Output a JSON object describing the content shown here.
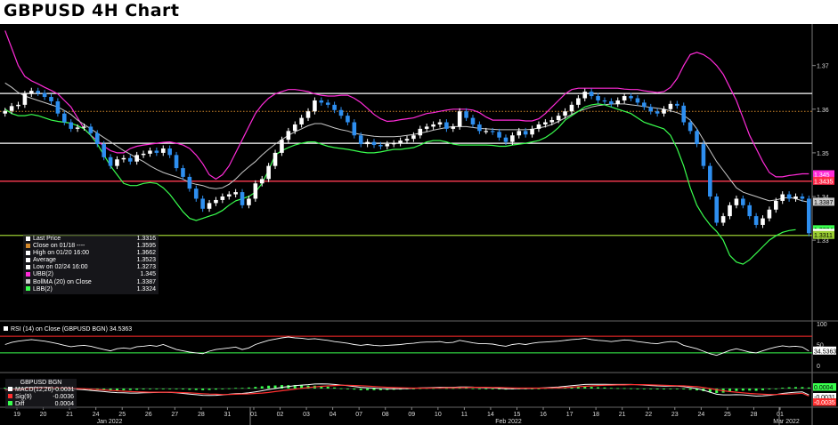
{
  "title": "GBPUSD 4H Chart",
  "chart_data": [
    {
      "type": "line",
      "panel": "price",
      "series_types": "candlestick + bollinger bands",
      "y_ticks": [
        1.33,
        1.34,
        1.35,
        1.36,
        1.37
      ],
      "y_tick_labels": [
        "1.33",
        "1.34",
        "1.35",
        "1.36",
        "1.37"
      ],
      "ylim": [
        1.3115,
        1.3795
      ],
      "x_tick_labels": [
        "19",
        "20",
        "21",
        "24",
        "25",
        "26",
        "27",
        "28",
        "31",
        "01",
        "02",
        "03",
        "04",
        "07",
        "08",
        "09",
        "10",
        "11",
        "14",
        "15",
        "16",
        "17",
        "18",
        "21",
        "22",
        "23",
        "24",
        "25",
        "28",
        "01"
      ],
      "x_month_labels": [
        "Jan 2022",
        "Feb 2022",
        "Mar 2022"
      ],
      "close": [
        1.3596,
        1.3607,
        1.361,
        1.3635,
        1.3642,
        1.3637,
        1.3628,
        1.3618,
        1.359,
        1.357,
        1.3555,
        1.3558,
        1.356,
        1.3545,
        1.352,
        1.349,
        1.347,
        1.3485,
        1.3488,
        1.348,
        1.3495,
        1.3498,
        1.3505,
        1.35,
        1.351,
        1.3495,
        1.3465,
        1.3445,
        1.3418,
        1.3395,
        1.3372,
        1.3385,
        1.3392,
        1.34,
        1.3405,
        1.341,
        1.338,
        1.3395,
        1.343,
        1.344,
        1.347,
        1.35,
        1.353,
        1.355,
        1.3565,
        1.358,
        1.3595,
        1.362,
        1.3615,
        1.361,
        1.3598,
        1.3585,
        1.357,
        1.354,
        1.352,
        1.3525,
        1.3518,
        1.3515,
        1.352,
        1.3522,
        1.3528,
        1.3532,
        1.354,
        1.3555,
        1.356,
        1.3565,
        1.357,
        1.3555,
        1.356,
        1.3595,
        1.358,
        1.3565,
        1.355,
        1.355,
        1.3548,
        1.3535,
        1.3525,
        1.354,
        1.355,
        1.3542,
        1.3555,
        1.3565,
        1.357,
        1.3575,
        1.3585,
        1.3595,
        1.361,
        1.3625,
        1.364,
        1.363,
        1.362,
        1.3618,
        1.3612,
        1.362,
        1.363,
        1.3625,
        1.3615,
        1.3605,
        1.3595,
        1.359,
        1.36,
        1.3612,
        1.3608,
        1.357,
        1.355,
        1.352,
        1.347,
        1.34,
        1.334,
        1.3355,
        1.338,
        1.3395,
        1.338,
        1.3355,
        1.3335,
        1.335,
        1.337,
        1.339,
        1.3405,
        1.3395,
        1.34,
        1.3395,
        1.3316
      ],
      "bollinger_upper": [
        1.378,
        1.374,
        1.37,
        1.3675,
        1.3665,
        1.3658,
        1.365,
        1.3643,
        1.3635,
        1.362,
        1.3605,
        1.358,
        1.3555,
        1.354,
        1.3528,
        1.3515,
        1.3505,
        1.35,
        1.35,
        1.351,
        1.3515,
        1.3518,
        1.352,
        1.3522,
        1.3524,
        1.3525,
        1.3522,
        1.3518,
        1.351,
        1.3495,
        1.3475,
        1.345,
        1.344,
        1.345,
        1.347,
        1.35,
        1.353,
        1.356,
        1.359,
        1.361,
        1.3625,
        1.3635,
        1.364,
        1.3645,
        1.3645,
        1.3643,
        1.364,
        1.3635,
        1.3632,
        1.363,
        1.363,
        1.3632,
        1.3632,
        1.3625,
        1.3615,
        1.3602,
        1.3588,
        1.3578,
        1.3572,
        1.3573,
        1.3576,
        1.3578,
        1.358,
        1.3585,
        1.359,
        1.3592,
        1.3595,
        1.3598,
        1.36,
        1.36,
        1.36,
        1.3598,
        1.3592,
        1.3582,
        1.3575,
        1.3575,
        1.3575,
        1.3575,
        1.3575,
        1.3573,
        1.3573,
        1.3578,
        1.359,
        1.3605,
        1.362,
        1.3635,
        1.3645,
        1.3648,
        1.3648,
        1.3648,
        1.3648,
        1.3648,
        1.3648,
        1.3648,
        1.3646,
        1.3645,
        1.3645,
        1.3642,
        1.364,
        1.3638,
        1.364,
        1.365,
        1.367,
        1.37,
        1.3725,
        1.373,
        1.3725,
        1.3715,
        1.37,
        1.368,
        1.365,
        1.362,
        1.358,
        1.354,
        1.351,
        1.348,
        1.3455,
        1.3445,
        1.3445,
        1.3448,
        1.345,
        1.3452,
        1.3452
      ],
      "bollinger_ma": [
        1.366,
        1.365,
        1.3638,
        1.363,
        1.3625,
        1.362,
        1.3615,
        1.361,
        1.3605,
        1.3597,
        1.3588,
        1.3575,
        1.3565,
        1.3555,
        1.3545,
        1.3535,
        1.3525,
        1.3515,
        1.3505,
        1.3497,
        1.3488,
        1.348,
        1.347,
        1.3462,
        1.3455,
        1.345,
        1.3445,
        1.344,
        1.3432,
        1.3428,
        1.3425,
        1.342,
        1.3418,
        1.342,
        1.3428,
        1.344,
        1.3455,
        1.3468,
        1.348,
        1.3495,
        1.3508,
        1.352,
        1.353,
        1.354,
        1.3548,
        1.3555,
        1.3562,
        1.3567,
        1.3567,
        1.3562,
        1.3557,
        1.3553,
        1.355,
        1.3545,
        1.3542,
        1.354,
        1.3538,
        1.3537,
        1.3537,
        1.3537,
        1.3538,
        1.354,
        1.3542,
        1.3545,
        1.3548,
        1.3552,
        1.3555,
        1.3558,
        1.356,
        1.356,
        1.356,
        1.3558,
        1.3556,
        1.3555,
        1.3554,
        1.3553,
        1.3553,
        1.3553,
        1.3553,
        1.3553,
        1.3554,
        1.3557,
        1.356,
        1.3565,
        1.3572,
        1.358,
        1.3588,
        1.3595,
        1.36,
        1.3605,
        1.3608,
        1.361,
        1.3612,
        1.3612,
        1.3612,
        1.361,
        1.3608,
        1.3606,
        1.3604,
        1.3602,
        1.36,
        1.3596,
        1.3592,
        1.3586,
        1.3575,
        1.3555,
        1.353,
        1.3505,
        1.348,
        1.346,
        1.344,
        1.342,
        1.341,
        1.3405,
        1.34,
        1.3395,
        1.339,
        1.3392,
        1.3396,
        1.3398,
        1.3395,
        1.339,
        1.3387
      ],
      "bollinger_lower": [
        1.36,
        1.359,
        1.3585,
        1.3585,
        1.3588,
        1.3585,
        1.358,
        1.3575,
        1.3572,
        1.357,
        1.3568,
        1.3562,
        1.3555,
        1.354,
        1.352,
        1.3495,
        1.347,
        1.345,
        1.343,
        1.3425,
        1.3425,
        1.343,
        1.3432,
        1.343,
        1.342,
        1.3405,
        1.3385,
        1.3365,
        1.335,
        1.3345,
        1.335,
        1.3355,
        1.336,
        1.3368,
        1.338,
        1.339,
        1.3395,
        1.34,
        1.341,
        1.343,
        1.346,
        1.3495,
        1.3505,
        1.3512,
        1.3518,
        1.3522,
        1.3525,
        1.3525,
        1.352,
        1.3515,
        1.3512,
        1.351,
        1.3508,
        1.3505,
        1.3502,
        1.35,
        1.35,
        1.3502,
        1.3505,
        1.3508,
        1.3508,
        1.351,
        1.3512,
        1.3518,
        1.3525,
        1.3528,
        1.3528,
        1.3525,
        1.352,
        1.3518,
        1.3518,
        1.3518,
        1.3518,
        1.3518,
        1.3517,
        1.3515,
        1.3515,
        1.3518,
        1.352,
        1.3522,
        1.3525,
        1.3528,
        1.3535,
        1.3545,
        1.3558,
        1.3575,
        1.3585,
        1.3595,
        1.3605,
        1.361,
        1.3612,
        1.361,
        1.3605,
        1.36,
        1.3595,
        1.359,
        1.358,
        1.357,
        1.3565,
        1.356,
        1.3555,
        1.354,
        1.351,
        1.347,
        1.342,
        1.338,
        1.3355,
        1.3335,
        1.332,
        1.33,
        1.3265,
        1.325,
        1.3245,
        1.3255,
        1.327,
        1.3285,
        1.33,
        1.331,
        1.3318,
        1.3322,
        1.3324
      ],
      "horizontal_lines": [
        {
          "value": 1.3636,
          "color": "#ffffff",
          "label": "1.3636"
        },
        {
          "value": 1.3522,
          "color": "#ffffff",
          "label": "1.3522"
        },
        {
          "value": 1.3435,
          "color": "#ff3b52",
          "label": "1.3435"
        },
        {
          "value": 1.3311,
          "color": "#9acd32",
          "label": "1.3311"
        },
        {
          "value": 1.3595,
          "color": "#d4882a",
          "dotted": true
        }
      ],
      "right_labels": [
        {
          "value": 1.345,
          "text": "1.345",
          "bg": "#ff2bd8",
          "fg": "#ffffff"
        },
        {
          "value": 1.3435,
          "text": "1.3435",
          "bg": "#ff2a4a",
          "fg": "#ffffff"
        },
        {
          "value": 1.3387,
          "text": "1.3387",
          "bg": "#c9c9c9",
          "fg": "#000000"
        },
        {
          "value": 1.3324,
          "text": "1.3324",
          "bg": "#39ff4e",
          "fg": "#000000"
        },
        {
          "value": 1.3316,
          "text": "1.3316",
          "bg": "#ffffff",
          "fg": "#000000"
        },
        {
          "value": 1.3311,
          "text": "1.3311",
          "bg": "#9acd32",
          "fg": "#000000"
        }
      ]
    },
    {
      "type": "line",
      "panel": "rsi",
      "title": "RSI (14)  on Close (GBPUSD BGN) 34.5363",
      "y_ticks": [
        100,
        50,
        0
      ],
      "y_tick_labels": [
        "100",
        "50",
        "0"
      ],
      "ylim": [
        0,
        100
      ],
      "levels": [
        70,
        30
      ],
      "last_value_label": "34.5363",
      "values": [
        50,
        55,
        58,
        60,
        62,
        60,
        58,
        55,
        52,
        48,
        45,
        47,
        48,
        46,
        42,
        38,
        35,
        40,
        42,
        40,
        45,
        46,
        48,
        46,
        50,
        44,
        38,
        35,
        32,
        30,
        28,
        34,
        38,
        40,
        42,
        44,
        38,
        42,
        50,
        55,
        60,
        63,
        66,
        68,
        66,
        65,
        63,
        64,
        62,
        60,
        57,
        55,
        53,
        50,
        48,
        50,
        48,
        47,
        48,
        49,
        50,
        52,
        53,
        55,
        56,
        56,
        57,
        54,
        55,
        60,
        57,
        54,
        52,
        52,
        51,
        48,
        46,
        50,
        52,
        50,
        53,
        55,
        56,
        57,
        58,
        60,
        62,
        63,
        65,
        62,
        60,
        59,
        57,
        59,
        61,
        60,
        57,
        55,
        53,
        52,
        55,
        57,
        56,
        48,
        44,
        40,
        34,
        28,
        24,
        30,
        36,
        40,
        36,
        32,
        30,
        35,
        40,
        44,
        47,
        45,
        46,
        44,
        34.5363
      ]
    },
    {
      "type": "bar",
      "panel": "macd",
      "y_tick_labels": [
        "0.0004",
        "-0.0031",
        "-0.0035"
      ],
      "macd": [
        -0.0004,
        -0.0001,
        0.0002,
        0.0004,
        0.0006,
        0.0007,
        0.0007,
        0.0006,
        0.0004,
        0.0001,
        -0.0002,
        -0.0004,
        -0.0006,
        -0.0009,
        -0.0012,
        -0.0015,
        -0.0018,
        -0.002,
        -0.0021,
        -0.0022,
        -0.0022,
        -0.0021,
        -0.002,
        -0.0019,
        -0.0018,
        -0.0019,
        -0.0021,
        -0.0024,
        -0.0027,
        -0.003,
        -0.0033,
        -0.0034,
        -0.0033,
        -0.0031,
        -0.0028,
        -0.0025,
        -0.0024,
        -0.0021,
        -0.0016,
        -0.0011,
        -0.0005,
        0.0,
        0.0006,
        0.001,
        0.0014,
        0.0017,
        0.0019,
        0.0022,
        0.0023,
        0.0022,
        0.002,
        0.0017,
        0.0014,
        0.001,
        0.0006,
        0.0004,
        0.0002,
        0.0,
        -0.0001,
        -0.0001,
        -0.0001,
        0.0,
        0.0001,
        0.0003,
        0.0004,
        0.0005,
        0.0006,
        0.0006,
        0.0006,
        0.0008,
        0.0008,
        0.0007,
        0.0005,
        0.0004,
        0.0003,
        0.0001,
        -0.0001,
        -0.0001,
        0.0,
        0.0,
        0.0001,
        0.0002,
        0.0004,
        0.0006,
        0.0008,
        0.0011,
        0.0014,
        0.0017,
        0.002,
        0.0021,
        0.0021,
        0.0021,
        0.002,
        0.002,
        0.002,
        0.002,
        0.0019,
        0.0017,
        0.0015,
        0.0013,
        0.0012,
        0.0012,
        0.0012,
        0.0009,
        0.0005,
        0.0,
        -0.0008,
        -0.0018,
        -0.0028,
        -0.0031,
        -0.0031,
        -0.003,
        -0.0031,
        -0.0034,
        -0.0037,
        -0.0036,
        -0.0033,
        -0.0029,
        -0.0024,
        -0.0021,
        -0.0018,
        -0.0016,
        -0.0031
      ],
      "signal": [
        -0.0008,
        -0.0006,
        -0.0004,
        -0.0002,
        0.0,
        0.0002,
        0.0003,
        0.0004,
        0.0004,
        0.0003,
        0.0002,
        0.0,
        -0.0001,
        -0.0003,
        -0.0005,
        -0.0007,
        -0.0009,
        -0.0011,
        -0.0013,
        -0.0015,
        -0.0016,
        -0.0017,
        -0.0018,
        -0.0018,
        -0.0018,
        -0.0018,
        -0.0019,
        -0.002,
        -0.0021,
        -0.0023,
        -0.0025,
        -0.0027,
        -0.0028,
        -0.0029,
        -0.0029,
        -0.0028,
        -0.0027,
        -0.0026,
        -0.0024,
        -0.0022,
        -0.0019,
        -0.0015,
        -0.0011,
        -0.0007,
        -0.0003,
        0.0001,
        0.0005,
        0.0008,
        0.0011,
        0.0013,
        0.0015,
        0.0016,
        0.0016,
        0.0015,
        0.0014,
        0.0012,
        0.001,
        0.0008,
        0.0006,
        0.0005,
        0.0004,
        0.0003,
        0.0002,
        0.0002,
        0.0002,
        0.0003,
        0.0003,
        0.0004,
        0.0004,
        0.0005,
        0.0005,
        0.0006,
        0.0006,
        0.0006,
        0.0005,
        0.0005,
        0.0004,
        0.0003,
        0.0002,
        0.0002,
        0.0002,
        0.0002,
        0.0002,
        0.0003,
        0.0004,
        0.0005,
        0.0007,
        0.0009,
        0.0011,
        0.0013,
        0.0015,
        0.0016,
        0.0017,
        0.0018,
        0.0018,
        0.0019,
        0.0019,
        0.0019,
        0.0018,
        0.0017,
        0.0016,
        0.0015,
        0.0014,
        0.0013,
        0.0011,
        0.0009,
        0.0005,
        0.0,
        -0.0006,
        -0.0011,
        -0.0015,
        -0.0018,
        -0.0021,
        -0.0024,
        -0.0026,
        -0.0028,
        -0.0029,
        -0.0029,
        -0.0028,
        -0.0027,
        -0.0025,
        -0.0023,
        -0.0036
      ]
    }
  ],
  "legend": {
    "rows": [
      {
        "label": "Last Price",
        "value": "1.3316",
        "color": "#ffffff"
      },
      {
        "label": "Close on 01/18  ----",
        "value": "1.3595",
        "color": "#d4882a"
      },
      {
        "label": "High on 01/20 16:00",
        "value": "1.3662",
        "color": "#ffffff"
      },
      {
        "label": "Average",
        "value": "1.3523",
        "color": "#ffffff"
      },
      {
        "label": "Low on 02/24 16:00",
        "value": "1.3273",
        "color": "#ffffff"
      },
      {
        "label": "UBB(2)",
        "value": "1.345",
        "color": "#ff2bd8"
      },
      {
        "label": "BollMA (20)  on Close",
        "value": "1.3387",
        "color": "#c9c9c9"
      },
      {
        "label": "LBB(2)",
        "value": "1.3324",
        "color": "#39ff4e"
      }
    ]
  },
  "rsi_legend": {
    "label": "RSI (14)  on Close (GBPUSD BGN) 34.5363"
  },
  "macd_legend": {
    "header": "GBPUSD BGN",
    "rows": [
      {
        "label": "MACD(12,26)",
        "value": "-0.0031",
        "color": "#ffffff"
      },
      {
        "label": "Sig(9)",
        "value": "-0.0036",
        "color": "#ff3030"
      },
      {
        "label": "Diff",
        "value": "0.0004",
        "color": "#39ff4e"
      }
    ]
  },
  "colors": {
    "up_candle": "#ffffff",
    "down_candle": "#2e8ff0",
    "upper_band": "#ff2bd8",
    "mid_band": "#c9c9c9",
    "lower_band": "#39ff4e",
    "rsi_line": "#ffffff",
    "rsi_70": "#ff2a2a",
    "rsi_30": "#39ff4e",
    "macd_hist": "#39ff4e",
    "signal": "#ff3030"
  }
}
